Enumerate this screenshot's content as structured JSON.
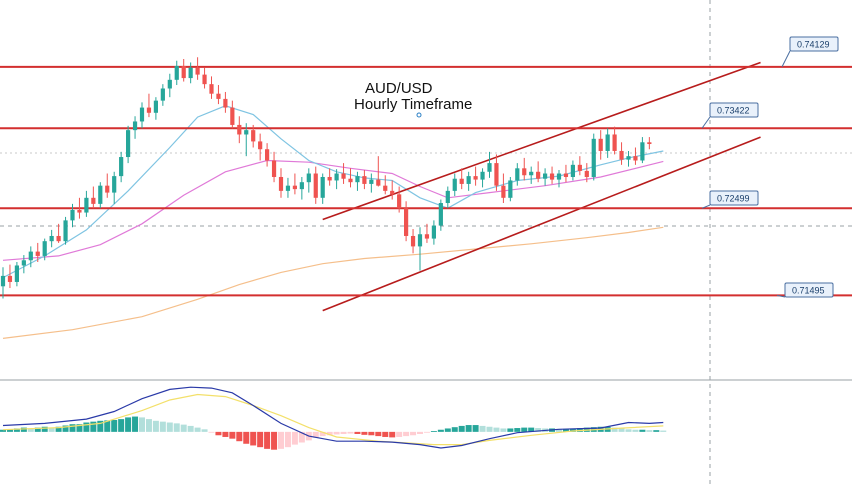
{
  "chart_data": {
    "type": "candlestick",
    "title_line1": "AUD/USD",
    "title_line2": "Hourly Timeframe",
    "ylim": [
      0.7052,
      0.749
    ],
    "x_count": 96,
    "colors": {
      "up": "#26a69a",
      "down": "#ef5350",
      "level": "#d32f2f",
      "channel": "#b71c1c",
      "ma_fast": "#7fc4e2",
      "ma_mid": "#e07ad8",
      "ma_slow": "#f5bf8b",
      "macd": "#2a3aa8",
      "signal": "#f3e06a",
      "hist_up": "#26a69a",
      "hist_down": "#ef5350",
      "label_bg": "#e9f1fb",
      "label_border": "#4a6fa1"
    },
    "levels": [
      {
        "value": 0.74129,
        "label": "0.74129"
      },
      {
        "value": 0.73422,
        "label": "0.73422"
      },
      {
        "value": 0.72499,
        "label": "0.72499"
      },
      {
        "value": 0.71495,
        "label": "0.71495"
      }
    ],
    "channel": {
      "upper": [
        [
          46,
          0.7237
        ],
        [
          109,
          0.7418
        ]
      ],
      "lower": [
        [
          46,
          0.7132
        ],
        [
          109,
          0.7332
        ]
      ]
    },
    "candles": [
      [
        0.716,
        0.7182,
        0.7146,
        0.7172
      ],
      [
        0.7172,
        0.7185,
        0.7158,
        0.7165
      ],
      [
        0.7165,
        0.7188,
        0.716,
        0.7184
      ],
      [
        0.7184,
        0.7196,
        0.7175,
        0.719
      ],
      [
        0.719,
        0.7206,
        0.7182,
        0.72
      ],
      [
        0.72,
        0.721,
        0.7188,
        0.7195
      ],
      [
        0.7195,
        0.7215,
        0.719,
        0.7212
      ],
      [
        0.7212,
        0.7225,
        0.7205,
        0.7218
      ],
      [
        0.7218,
        0.7232,
        0.721,
        0.7212
      ],
      [
        0.7212,
        0.724,
        0.7208,
        0.7236
      ],
      [
        0.7236,
        0.7255,
        0.7228,
        0.7248
      ],
      [
        0.7248,
        0.7262,
        0.7238,
        0.7245
      ],
      [
        0.7245,
        0.727,
        0.724,
        0.7262
      ],
      [
        0.7262,
        0.7275,
        0.725,
        0.7255
      ],
      [
        0.7255,
        0.728,
        0.725,
        0.7276
      ],
      [
        0.7276,
        0.729,
        0.7262,
        0.7268
      ],
      [
        0.7268,
        0.7292,
        0.7255,
        0.7287
      ],
      [
        0.7287,
        0.7315,
        0.728,
        0.7309
      ],
      [
        0.7309,
        0.7345,
        0.7302,
        0.734
      ],
      [
        0.734,
        0.7356,
        0.733,
        0.735
      ],
      [
        0.735,
        0.7372,
        0.7342,
        0.7366
      ],
      [
        0.7366,
        0.7382,
        0.7355,
        0.736
      ],
      [
        0.736,
        0.7378,
        0.7352,
        0.7374
      ],
      [
        0.7374,
        0.7393,
        0.7368,
        0.7388
      ],
      [
        0.7388,
        0.7405,
        0.7378,
        0.7398
      ],
      [
        0.7398,
        0.742,
        0.7392,
        0.7414
      ],
      [
        0.7414,
        0.7422,
        0.7396,
        0.74
      ],
      [
        0.74,
        0.7418,
        0.7394,
        0.7412
      ],
      [
        0.7412,
        0.7424,
        0.7398,
        0.7404
      ],
      [
        0.7404,
        0.7412,
        0.7388,
        0.7393
      ],
      [
        0.7393,
        0.7402,
        0.7376,
        0.7382
      ],
      [
        0.7382,
        0.7392,
        0.737,
        0.7376
      ],
      [
        0.7376,
        0.7384,
        0.736,
        0.7366
      ],
      [
        0.7366,
        0.7374,
        0.7342,
        0.7346
      ],
      [
        0.7346,
        0.7356,
        0.7325,
        0.7335
      ],
      [
        0.7335,
        0.7348,
        0.731,
        0.734
      ],
      [
        0.734,
        0.7346,
        0.732,
        0.7327
      ],
      [
        0.7327,
        0.7336,
        0.7305,
        0.7318
      ],
      [
        0.7318,
        0.7325,
        0.7298,
        0.7305
      ],
      [
        0.7305,
        0.7315,
        0.728,
        0.7286
      ],
      [
        0.7286,
        0.7296,
        0.7262,
        0.727
      ],
      [
        0.727,
        0.7285,
        0.7262,
        0.7276
      ],
      [
        0.7276,
        0.729,
        0.7266,
        0.7272
      ],
      [
        0.7272,
        0.7286,
        0.726,
        0.728
      ],
      [
        0.728,
        0.7296,
        0.7268,
        0.729
      ],
      [
        0.729,
        0.7298,
        0.7255,
        0.7262
      ],
      [
        0.7262,
        0.729,
        0.7255,
        0.7286
      ],
      [
        0.7286,
        0.7296,
        0.7276,
        0.7282
      ],
      [
        0.7282,
        0.7295,
        0.7272,
        0.729
      ],
      [
        0.729,
        0.7302,
        0.7278,
        0.7284
      ],
      [
        0.7284,
        0.7296,
        0.7274,
        0.728
      ],
      [
        0.728,
        0.7292,
        0.727,
        0.7287
      ],
      [
        0.7287,
        0.7294,
        0.7272,
        0.7278
      ],
      [
        0.7278,
        0.729,
        0.7268,
        0.7283
      ],
      [
        0.7283,
        0.731,
        0.7275,
        0.7276
      ],
      [
        0.7276,
        0.7288,
        0.7266,
        0.727
      ],
      [
        0.727,
        0.7282,
        0.726,
        0.7266
      ],
      [
        0.7266,
        0.7275,
        0.7245,
        0.725
      ],
      [
        0.725,
        0.7258,
        0.7212,
        0.7218
      ],
      [
        0.7218,
        0.7226,
        0.7198,
        0.7206
      ],
      [
        0.7206,
        0.7228,
        0.7178,
        0.722
      ],
      [
        0.722,
        0.7232,
        0.721,
        0.7215
      ],
      [
        0.7215,
        0.7236,
        0.7208,
        0.723
      ],
      [
        0.723,
        0.726,
        0.7224,
        0.7256
      ],
      [
        0.7256,
        0.7275,
        0.725,
        0.727
      ],
      [
        0.727,
        0.729,
        0.7264,
        0.7284
      ],
      [
        0.7284,
        0.7296,
        0.7272,
        0.7278
      ],
      [
        0.7278,
        0.7292,
        0.727,
        0.7287
      ],
      [
        0.7287,
        0.7298,
        0.7276,
        0.7283
      ],
      [
        0.7283,
        0.7296,
        0.7274,
        0.7292
      ],
      [
        0.7292,
        0.7315,
        0.7285,
        0.7302
      ],
      [
        0.7302,
        0.7312,
        0.727,
        0.7276
      ],
      [
        0.7276,
        0.729,
        0.7256,
        0.7262
      ],
      [
        0.7262,
        0.7286,
        0.7258,
        0.7282
      ],
      [
        0.7282,
        0.7302,
        0.7276,
        0.7296
      ],
      [
        0.7296,
        0.7308,
        0.7282,
        0.7288
      ],
      [
        0.7288,
        0.7298,
        0.7278,
        0.7292
      ],
      [
        0.7292,
        0.7304,
        0.728,
        0.7284
      ],
      [
        0.7284,
        0.7296,
        0.7276,
        0.729
      ],
      [
        0.729,
        0.7298,
        0.7278,
        0.7283
      ],
      [
        0.7283,
        0.7294,
        0.7274,
        0.729
      ],
      [
        0.729,
        0.73,
        0.728,
        0.7286
      ],
      [
        0.7286,
        0.7305,
        0.7282,
        0.73
      ],
      [
        0.73,
        0.731,
        0.7288,
        0.7293
      ],
      [
        0.7293,
        0.7302,
        0.728,
        0.7286
      ],
      [
        0.7286,
        0.7336,
        0.7282,
        0.733
      ],
      [
        0.733,
        0.734,
        0.7306,
        0.7316
      ],
      [
        0.7316,
        0.7342,
        0.7308,
        0.7335
      ],
      [
        0.7335,
        0.7344,
        0.7312,
        0.7316
      ],
      [
        0.7316,
        0.7326,
        0.73,
        0.7306
      ],
      [
        0.7306,
        0.7316,
        0.7298,
        0.731
      ],
      [
        0.731,
        0.732,
        0.73,
        0.7305
      ],
      [
        0.7305,
        0.7332,
        0.7302,
        0.7326
      ],
      [
        0.7326,
        0.7332,
        0.7318,
        0.7324
      ]
    ],
    "ma_fast": [
      [
        0,
        0.717
      ],
      [
        6,
        0.7195
      ],
      [
        12,
        0.7225
      ],
      [
        18,
        0.727
      ],
      [
        24,
        0.732
      ],
      [
        28,
        0.7355
      ],
      [
        32,
        0.7368
      ],
      [
        36,
        0.7358
      ],
      [
        40,
        0.733
      ],
      [
        44,
        0.7305
      ],
      [
        48,
        0.7292
      ],
      [
        52,
        0.7285
      ],
      [
        56,
        0.7282
      ],
      [
        60,
        0.7262
      ],
      [
        64,
        0.725
      ],
      [
        68,
        0.7268
      ],
      [
        74,
        0.7282
      ],
      [
        80,
        0.7287
      ],
      [
        86,
        0.73
      ],
      [
        90,
        0.7308
      ],
      [
        95,
        0.7316
      ]
    ],
    "ma_mid": [
      [
        0,
        0.719
      ],
      [
        8,
        0.7195
      ],
      [
        14,
        0.7208
      ],
      [
        20,
        0.7232
      ],
      [
        26,
        0.7265
      ],
      [
        32,
        0.7292
      ],
      [
        38,
        0.7305
      ],
      [
        44,
        0.7303
      ],
      [
        50,
        0.7296
      ],
      [
        56,
        0.729
      ],
      [
        60,
        0.7275
      ],
      [
        64,
        0.7262
      ],
      [
        70,
        0.7268
      ],
      [
        78,
        0.7276
      ],
      [
        86,
        0.7286
      ],
      [
        95,
        0.7304
      ]
    ],
    "ma_slow": [
      [
        0,
        0.71
      ],
      [
        10,
        0.711
      ],
      [
        20,
        0.7125
      ],
      [
        28,
        0.7145
      ],
      [
        34,
        0.7162
      ],
      [
        40,
        0.7176
      ],
      [
        46,
        0.7186
      ],
      [
        52,
        0.7192
      ],
      [
        60,
        0.7197
      ],
      [
        68,
        0.7203
      ],
      [
        76,
        0.7209
      ],
      [
        84,
        0.7216
      ],
      [
        90,
        0.7222
      ],
      [
        95,
        0.7228
      ]
    ],
    "macd": {
      "line": [
        [
          0,
          0.15
        ],
        [
          6,
          0.2
        ],
        [
          12,
          0.3
        ],
        [
          16,
          0.48
        ],
        [
          20,
          0.78
        ],
        [
          24,
          1.0
        ],
        [
          27,
          1.05
        ],
        [
          30,
          1.03
        ],
        [
          33,
          0.92
        ],
        [
          36,
          0.62
        ],
        [
          40,
          0.2
        ],
        [
          44,
          -0.1
        ],
        [
          48,
          -0.22
        ],
        [
          52,
          -0.22
        ],
        [
          56,
          -0.24
        ],
        [
          60,
          -0.3
        ],
        [
          63,
          -0.38
        ],
        [
          66,
          -0.32
        ],
        [
          70,
          -0.16
        ],
        [
          74,
          -0.02
        ],
        [
          80,
          0.06
        ],
        [
          86,
          0.09
        ],
        [
          90,
          0.22
        ],
        [
          93,
          0.2
        ],
        [
          95,
          0.22
        ]
      ],
      "signal": [
        [
          0,
          0.05
        ],
        [
          8,
          0.1
        ],
        [
          14,
          0.2
        ],
        [
          20,
          0.5
        ],
        [
          24,
          0.75
        ],
        [
          28,
          0.88
        ],
        [
          32,
          0.83
        ],
        [
          36,
          0.62
        ],
        [
          40,
          0.38
        ],
        [
          44,
          0.1
        ],
        [
          48,
          -0.12
        ],
        [
          54,
          -0.22
        ],
        [
          58,
          -0.26
        ],
        [
          62,
          -0.3
        ],
        [
          66,
          -0.3
        ],
        [
          70,
          -0.2
        ],
        [
          76,
          -0.08
        ],
        [
          82,
          0.02
        ],
        [
          88,
          0.08
        ],
        [
          95,
          0.14
        ]
      ],
      "histogram": [
        0.05,
        0.06,
        0.08,
        0.1,
        0.08,
        0.1,
        0.12,
        0.1,
        0.12,
        0.15,
        0.18,
        0.18,
        0.22,
        0.24,
        0.26,
        0.27,
        0.28,
        0.3,
        0.34,
        0.36,
        0.34,
        0.3,
        0.26,
        0.24,
        0.22,
        0.2,
        0.17,
        0.14,
        0.1,
        0.06,
        -0.02,
        -0.08,
        -0.12,
        -0.16,
        -0.22,
        -0.28,
        -0.32,
        -0.36,
        -0.4,
        -0.42,
        -0.4,
        -0.36,
        -0.3,
        -0.25,
        -0.2,
        -0.14,
        -0.1,
        -0.08,
        -0.06,
        -0.05,
        -0.04,
        -0.05,
        -0.07,
        -0.08,
        -0.1,
        -0.12,
        -0.13,
        -0.12,
        -0.1,
        -0.08,
        -0.05,
        -0.02,
        0.02,
        0.05,
        0.08,
        0.11,
        0.14,
        0.16,
        0.16,
        0.14,
        0.12,
        0.1,
        0.08,
        0.08,
        0.09,
        0.1,
        0.1,
        0.09,
        0.08,
        0.08,
        0.07,
        0.07,
        0.08,
        0.09,
        0.1,
        0.11,
        0.12,
        0.12,
        0.1,
        0.08,
        0.06,
        0.05,
        0.05,
        0.04,
        0.04,
        0.03
      ],
      "ylim": [
        -1.25,
        1.22
      ]
    }
  }
}
